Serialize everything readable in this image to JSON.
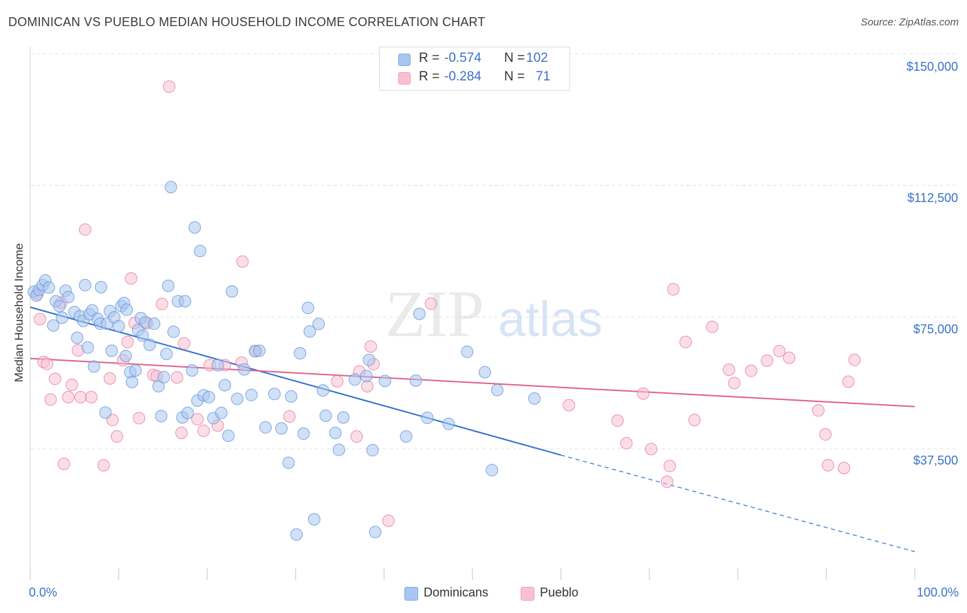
{
  "header": {
    "title": "DOMINICAN VS PUEBLO MEDIAN HOUSEHOLD INCOME CORRELATION CHART",
    "source": "Source: ZipAtlas.com"
  },
  "watermark": {
    "zip": "ZIP",
    "atlas": "atlas"
  },
  "stats": [
    {
      "r_label": "R =",
      "r_value": "-0.574",
      "n_label": "N =",
      "n_value": "102",
      "color": "#7fa8e6"
    },
    {
      "r_label": "R =",
      "r_value": "-0.284",
      "n_label": "N =",
      "n_value": "71",
      "color": "#f29bb5"
    }
  ],
  "legend": [
    {
      "label": "Dominicans",
      "color": "#a9c6f0"
    },
    {
      "label": "Pueblo",
      "color": "#f8c1d2"
    }
  ],
  "chart_data": {
    "type": "scatter",
    "title": "DOMINICAN VS PUEBLO MEDIAN HOUSEHOLD INCOME CORRELATION CHART",
    "ylabel": "Median Household Income",
    "xlabel": "",
    "x_tick_labels": [
      "0.0%",
      "100.0%"
    ],
    "y_tick_labels": [
      "$150,000",
      "$112,500",
      "$75,000",
      "$37,500"
    ],
    "y_ticks": [
      150000,
      112500,
      75000,
      37500
    ],
    "xlim": [
      0,
      100
    ],
    "ylim": [
      5000,
      155000
    ],
    "grid": "horizontal dashed",
    "legend_position": "bottom-center",
    "series": [
      {
        "name": "Dominicans",
        "color": "#5b8fd8",
        "fill": "#a9c6f0",
        "trend": {
          "x0": 0,
          "y0": 77800,
          "x1": 60,
          "y1": 35700,
          "dashed_to_x": 100,
          "dashed_to_y": 8200
        },
        "points": [
          [
            0.4,
            82200
          ],
          [
            0.7,
            81100
          ],
          [
            1.0,
            82700
          ],
          [
            1.4,
            84100
          ],
          [
            1.7,
            85400
          ],
          [
            2.1,
            83400
          ],
          [
            2.6,
            72600
          ],
          [
            2.9,
            79500
          ],
          [
            3.3,
            78100
          ],
          [
            3.6,
            74800
          ],
          [
            4.0,
            82500
          ],
          [
            4.3,
            80700
          ],
          [
            5.0,
            76400
          ],
          [
            5.3,
            69100
          ],
          [
            5.6,
            75200
          ],
          [
            6.0,
            73900
          ],
          [
            6.2,
            84100
          ],
          [
            6.5,
            66300
          ],
          [
            6.7,
            75800
          ],
          [
            7.0,
            76900
          ],
          [
            7.2,
            60900
          ],
          [
            7.6,
            74500
          ],
          [
            7.9,
            73100
          ],
          [
            8.0,
            83500
          ],
          [
            8.5,
            47800
          ],
          [
            8.7,
            73100
          ],
          [
            9.0,
            76700
          ],
          [
            9.2,
            65400
          ],
          [
            9.5,
            74900
          ],
          [
            10.0,
            72400
          ],
          [
            10.3,
            78100
          ],
          [
            10.6,
            79000
          ],
          [
            10.8,
            63900
          ],
          [
            10.9,
            77100
          ],
          [
            11.3,
            59300
          ],
          [
            11.5,
            56500
          ],
          [
            11.9,
            59800
          ],
          [
            12.2,
            71300
          ],
          [
            12.5,
            74700
          ],
          [
            12.7,
            69700
          ],
          [
            13.0,
            73500
          ],
          [
            13.5,
            67100
          ],
          [
            14.0,
            73100
          ],
          [
            14.5,
            55300
          ],
          [
            14.8,
            46800
          ],
          [
            15.1,
            57900
          ],
          [
            15.4,
            64500
          ],
          [
            15.6,
            83900
          ],
          [
            15.9,
            112000
          ],
          [
            16.2,
            70800
          ],
          [
            16.7,
            79500
          ],
          [
            17.2,
            46400
          ],
          [
            17.5,
            79500
          ],
          [
            17.8,
            47700
          ],
          [
            18.3,
            59800
          ],
          [
            18.6,
            100500
          ],
          [
            18.9,
            51200
          ],
          [
            19.2,
            93800
          ],
          [
            19.6,
            52700
          ],
          [
            20.2,
            52200
          ],
          [
            20.7,
            46200
          ],
          [
            21.2,
            61300
          ],
          [
            21.6,
            47700
          ],
          [
            22.0,
            55600
          ],
          [
            22.4,
            41200
          ],
          [
            22.8,
            82300
          ],
          [
            23.4,
            51700
          ],
          [
            24.2,
            60100
          ],
          [
            25.0,
            52800
          ],
          [
            25.4,
            65300
          ],
          [
            25.9,
            65400
          ],
          [
            26.6,
            43600
          ],
          [
            27.6,
            53100
          ],
          [
            28.4,
            43300
          ],
          [
            29.2,
            33500
          ],
          [
            29.5,
            52400
          ],
          [
            30.1,
            13100
          ],
          [
            30.5,
            64700
          ],
          [
            30.9,
            41800
          ],
          [
            31.4,
            77600
          ],
          [
            31.6,
            70900
          ],
          [
            32.1,
            17400
          ],
          [
            32.6,
            73000
          ],
          [
            33.1,
            54100
          ],
          [
            33.4,
            46900
          ],
          [
            34.5,
            42000
          ],
          [
            34.9,
            37200
          ],
          [
            35.4,
            46400
          ],
          [
            36.7,
            57200
          ],
          [
            38.0,
            58200
          ],
          [
            38.3,
            62800
          ],
          [
            38.7,
            37100
          ],
          [
            39.0,
            13800
          ],
          [
            40.1,
            56800
          ],
          [
            42.5,
            41000
          ],
          [
            43.6,
            56900
          ],
          [
            44.0,
            75900
          ],
          [
            44.9,
            46300
          ],
          [
            47.3,
            44600
          ],
          [
            49.4,
            65100
          ],
          [
            51.4,
            59300
          ],
          [
            52.2,
            31400
          ],
          [
            52.8,
            54200
          ],
          [
            57.0,
            51800
          ]
        ]
      },
      {
        "name": "Pueblo",
        "color": "#e7709a",
        "fill": "#f8c1d2",
        "trend": {
          "x0": 0,
          "y0": 63200,
          "x1": 100,
          "y1": 49500
        },
        "points": [
          [
            0.8,
            81600
          ],
          [
            1.1,
            74400
          ],
          [
            1.5,
            62200
          ],
          [
            1.9,
            61700
          ],
          [
            2.3,
            51500
          ],
          [
            2.8,
            57400
          ],
          [
            3.5,
            79100
          ],
          [
            3.8,
            33200
          ],
          [
            4.3,
            52200
          ],
          [
            4.7,
            55700
          ],
          [
            5.4,
            65500
          ],
          [
            5.7,
            52200
          ],
          [
            6.2,
            99900
          ],
          [
            6.9,
            52200
          ],
          [
            8.3,
            32800
          ],
          [
            9.0,
            57500
          ],
          [
            9.3,
            45700
          ],
          [
            9.8,
            41000
          ],
          [
            10.5,
            62700
          ],
          [
            11.0,
            67900
          ],
          [
            11.4,
            86000
          ],
          [
            11.8,
            73300
          ],
          [
            12.3,
            46200
          ],
          [
            13.2,
            73200
          ],
          [
            13.9,
            58500
          ],
          [
            14.3,
            58200
          ],
          [
            14.9,
            78700
          ],
          [
            15.7,
            140600
          ],
          [
            16.6,
            57800
          ],
          [
            17.1,
            42000
          ],
          [
            17.4,
            67500
          ],
          [
            18.9,
            45900
          ],
          [
            19.6,
            42600
          ],
          [
            20.3,
            61300
          ],
          [
            21.2,
            44100
          ],
          [
            22.0,
            61300
          ],
          [
            23.9,
            62000
          ],
          [
            24.0,
            90800
          ],
          [
            25.5,
            65300
          ],
          [
            29.3,
            46700
          ],
          [
            34.7,
            56700
          ],
          [
            36.9,
            41000
          ],
          [
            37.2,
            59500
          ],
          [
            38.1,
            55300
          ],
          [
            38.5,
            66600
          ],
          [
            38.8,
            61600
          ],
          [
            40.5,
            17000
          ],
          [
            45.3,
            78800
          ],
          [
            60.9,
            49900
          ],
          [
            66.4,
            45500
          ],
          [
            67.4,
            39100
          ],
          [
            69.3,
            53200
          ],
          [
            70.2,
            37400
          ],
          [
            72.0,
            28100
          ],
          [
            72.3,
            32600
          ],
          [
            72.7,
            82900
          ],
          [
            74.1,
            67900
          ],
          [
            75.1,
            45700
          ],
          [
            77.1,
            72200
          ],
          [
            79.0,
            60000
          ],
          [
            79.6,
            56200
          ],
          [
            81.5,
            59700
          ],
          [
            83.3,
            62600
          ],
          [
            84.7,
            65300
          ],
          [
            85.8,
            63400
          ],
          [
            89.1,
            48400
          ],
          [
            89.9,
            41600
          ],
          [
            90.2,
            32800
          ],
          [
            92.0,
            32000
          ],
          [
            92.5,
            56600
          ],
          [
            93.2,
            62800
          ]
        ]
      }
    ]
  }
}
